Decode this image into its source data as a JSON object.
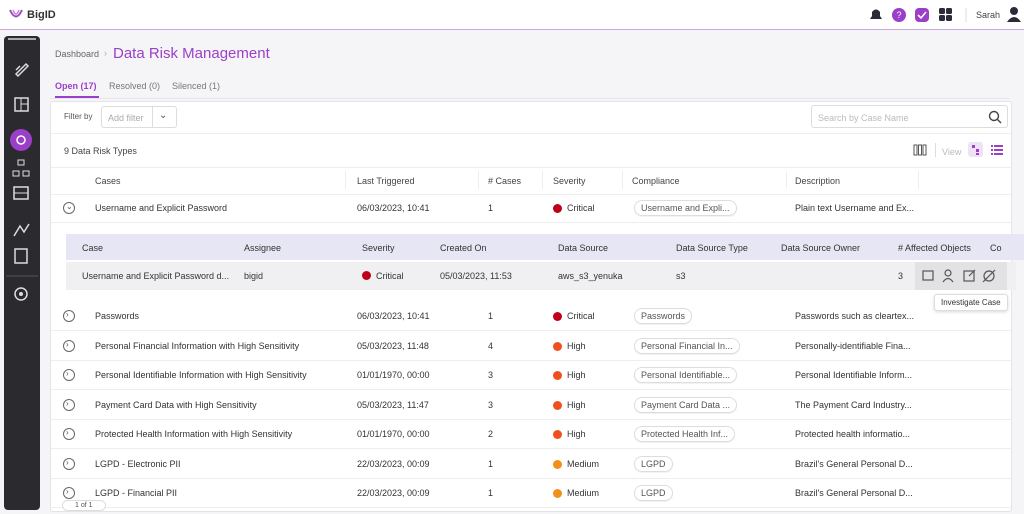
{
  "header": {
    "brand": "BigID",
    "user": "Sarah"
  },
  "breadcrumb": "Dashboard",
  "title": "Data Risk Management",
  "tabs": [
    "Open (17)",
    "Resolved (0)",
    "Silenced (1)"
  ],
  "filter": {
    "label": "Filter by",
    "placeholder": "Add filter"
  },
  "search_placeholder": "Search by Case Name",
  "count_label": "9 Data Risk Types",
  "view_label": "View",
  "table": {
    "columns": [
      "Cases",
      "Last Triggered",
      "# Cases",
      "Severity",
      "Compliance",
      "Description"
    ],
    "rows": [
      {
        "case": "Username and Explicit Password",
        "last_triggered": "06/03/2023, 10:41",
        "cases": 1,
        "severity": "Critical",
        "severity_color": "#c00018",
        "compliance": "Username and Expli...",
        "description": "Plain text Username and Ex..."
      },
      {
        "case": "Passwords",
        "last_triggered": "06/03/2023, 10:41",
        "cases": 1,
        "severity": "Critical",
        "severity_color": "#c00018",
        "compliance": "Passwords",
        "description": "Passwords such as cleartex..."
      },
      {
        "case": "Personal Financial Information with High Sensitivity",
        "last_triggered": "05/03/2023, 11:48",
        "cases": 4,
        "severity": "High",
        "severity_color": "#f0501e",
        "compliance": "Personal Financial In...",
        "description": "Personally-identifiable Fina..."
      },
      {
        "case": "Personal Identifiable Information with High Sensitivity",
        "last_triggered": "01/01/1970, 00:00",
        "cases": 3,
        "severity": "High",
        "severity_color": "#f0501e",
        "compliance": "Personal Identifiable...",
        "description": "Personal Identifiable Inform..."
      },
      {
        "case": "Payment Card Data with High Sensitivity",
        "last_triggered": "05/03/2023, 11:47",
        "cases": 3,
        "severity": "High",
        "severity_color": "#f0501e",
        "compliance": "Payment Card Data ...",
        "description": "The Payment Card Industry..."
      },
      {
        "case": "Protected Health Information with High Sensitivity",
        "last_triggered": "01/01/1970, 00:00",
        "cases": 2,
        "severity": "High",
        "severity_color": "#f0501e",
        "compliance": "Protected Health Inf...",
        "description": "Protected health informatio..."
      },
      {
        "case": "LGPD - Electronic PII",
        "last_triggered": "22/03/2023, 00:09",
        "cases": 1,
        "severity": "Medium",
        "severity_color": "#f39019",
        "compliance": "LGPD",
        "description": "Brazil's General Personal D..."
      },
      {
        "case": "LGPD - Financial PII",
        "last_triggered": "22/03/2023, 00:09",
        "cases": 1,
        "severity": "Medium",
        "severity_color": "#f39019",
        "compliance": "LGPD",
        "description": "Brazil's General Personal D..."
      }
    ]
  },
  "expanded": {
    "columns": [
      "Case",
      "Assignee",
      "Severity",
      "Created On",
      "Data Source",
      "Data Source Type",
      "Data Source Owner",
      "# Affected Objects",
      "Co"
    ],
    "row": {
      "case": "Username and Explicit Password d...",
      "assignee": "bigid",
      "severity": "Critical",
      "severity_color": "#c00018",
      "created_on": "05/03/2023, 11:53",
      "data_source": "aws_s3_yenuka",
      "data_source_type": "s3",
      "affected_objects": 3
    }
  },
  "tooltip": "Investigate Case",
  "pagination": "1 of 1"
}
